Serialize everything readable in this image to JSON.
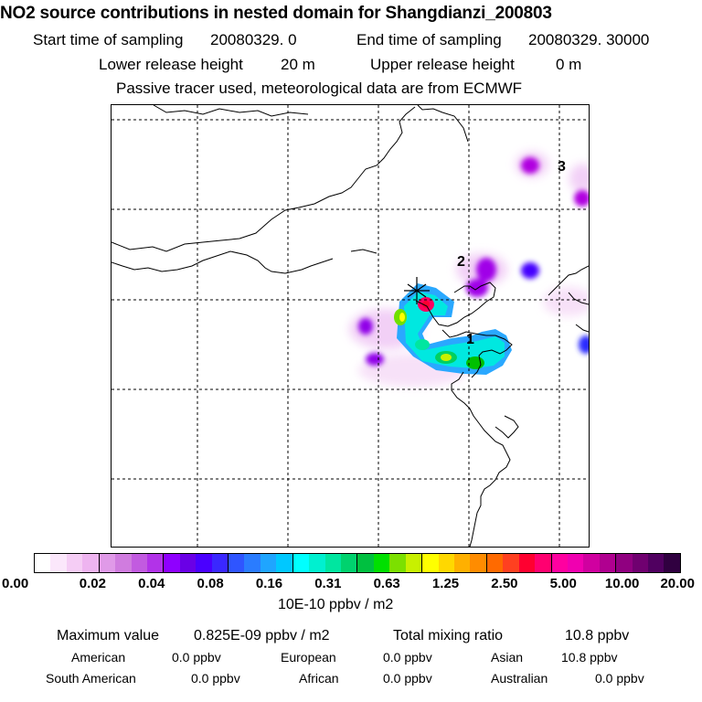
{
  "header": {
    "title": "NO2 source contributions in nested domain for Shangdianzi_200803",
    "start_label": "Start time of sampling",
    "start_value": "20080329.      0",
    "end_label": "End time of sampling",
    "end_value": "20080329. 30000",
    "lower_label": "Lower release height",
    "lower_value": "20 m",
    "upper_label": "Upper release height",
    "upper_value": "0 m",
    "tracer_note": "Passive tracer used, meteorological data are from ECMWF"
  },
  "map": {
    "source_marker": "asterisk-icon",
    "contour_labels": [
      "1",
      "2",
      "3"
    ]
  },
  "colorbar": {
    "colors": [
      "#ffffff",
      "#fbe7fb",
      "#f5cdf5",
      "#eeb4f0",
      "#e09ae8",
      "#d07cdf",
      "#c25be0",
      "#b233e8",
      "#8f00ff",
      "#6a00e6",
      "#4a00ff",
      "#3a28ff",
      "#2f55ff",
      "#2a7cff",
      "#1fa5ff",
      "#00c8ff",
      "#00ffff",
      "#00f0d0",
      "#00e6a0",
      "#00d26e",
      "#00c040",
      "#00e000",
      "#7ce000",
      "#c8f000",
      "#ffff00",
      "#ffd800",
      "#ffb000",
      "#ff8c00",
      "#ff6a00",
      "#ff4020",
      "#ff0030",
      "#ff0070",
      "#ff00a0",
      "#f000b0",
      "#d000a0",
      "#b00090",
      "#900080",
      "#700070",
      "#500060",
      "#300040"
    ],
    "tick_labels": [
      "0.00",
      "0.02",
      "0.04",
      "0.08",
      "0.16",
      "0.31",
      "0.63",
      "1.25",
      "2.50",
      "5.00",
      "10.00",
      "20.00"
    ],
    "unit": "10E-10 ppbv / m2"
  },
  "summary": {
    "max_label": "Maximum value",
    "max_value": "0.825E-09 ppbv / m2",
    "total_label": "Total mixing ratio",
    "total_value": "10.8 ppbv",
    "regions": [
      {
        "name": "American",
        "value": "0.0 ppbv"
      },
      {
        "name": "European",
        "value": "0.0 ppbv"
      },
      {
        "name": "Asian",
        "value": "10.8 ppbv"
      },
      {
        "name": "South American",
        "value": "0.0 ppbv"
      },
      {
        "name": "African",
        "value": "0.0 ppbv"
      },
      {
        "name": "Australian",
        "value": "0.0 ppbv"
      }
    ]
  }
}
